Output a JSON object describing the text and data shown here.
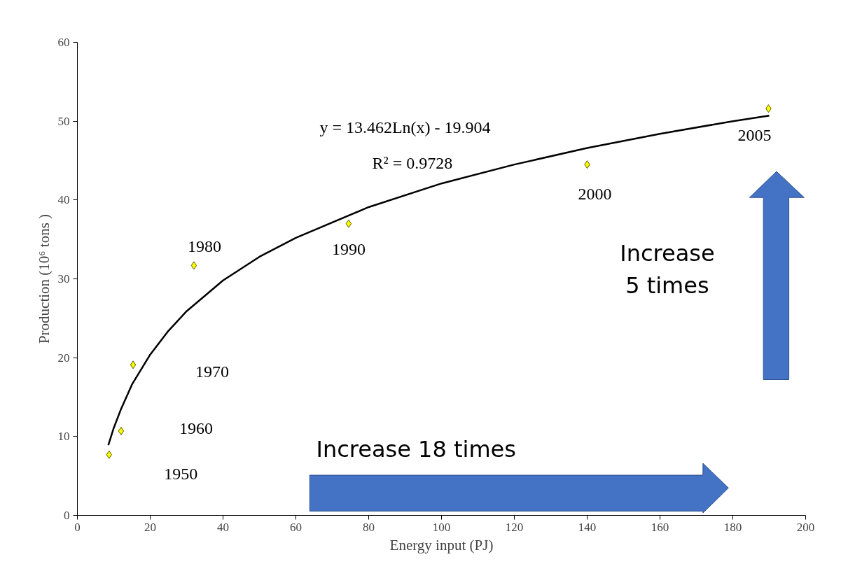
{
  "chart_data": {
    "type": "scatter",
    "xlabel": "Energy input (PJ)",
    "ylabel": "Production (10⁶ tons )",
    "xlim": [
      0,
      200
    ],
    "ylim": [
      0,
      60
    ],
    "xticks": [
      0,
      20,
      40,
      60,
      80,
      100,
      120,
      140,
      160,
      180,
      200
    ],
    "yticks": [
      0,
      10,
      20,
      30,
      40,
      50,
      60
    ],
    "grid": false,
    "marker": "diamond",
    "series": [
      {
        "color": "#ffff00",
        "x": [
          8.7,
          12.0,
          15.3,
          32.0,
          74.5,
          140.0,
          189.8
        ],
        "values": [
          7.7,
          10.7,
          19.1,
          31.7,
          37.0,
          44.5,
          51.6
        ]
      },
      {
        "type": "line",
        "color": "#000000",
        "marker": "none",
        "x": [
          8.5,
          10,
          12,
          15,
          20,
          25,
          30,
          40,
          50,
          60,
          80,
          100,
          120,
          140,
          160,
          180,
          190
        ],
        "values": [
          8.9,
          11.1,
          13.5,
          16.6,
          20.4,
          23.4,
          25.9,
          29.8,
          32.8,
          35.2,
          39.1,
          42.1,
          44.5,
          46.6,
          48.4,
          50.0,
          50.7
        ]
      }
    ],
    "annotations": [
      "1950",
      "1960",
      "1970",
      {
        "text": "1980",
        "x": 32.0,
        "y": 31.7
      },
      {
        "text": "1990",
        "x": 74.5,
        "y": 37.0
      },
      {
        "text": "2000",
        "x": 140.0,
        "y": 44.5
      },
      {
        "text": "2005",
        "x": 189.8,
        "y": 51.6
      },
      "y = 13.462Ln(x) - 19.904",
      "R² = 0.9728",
      "Increase  18 times",
      "Increase\n5 times"
    ]
  }
}
